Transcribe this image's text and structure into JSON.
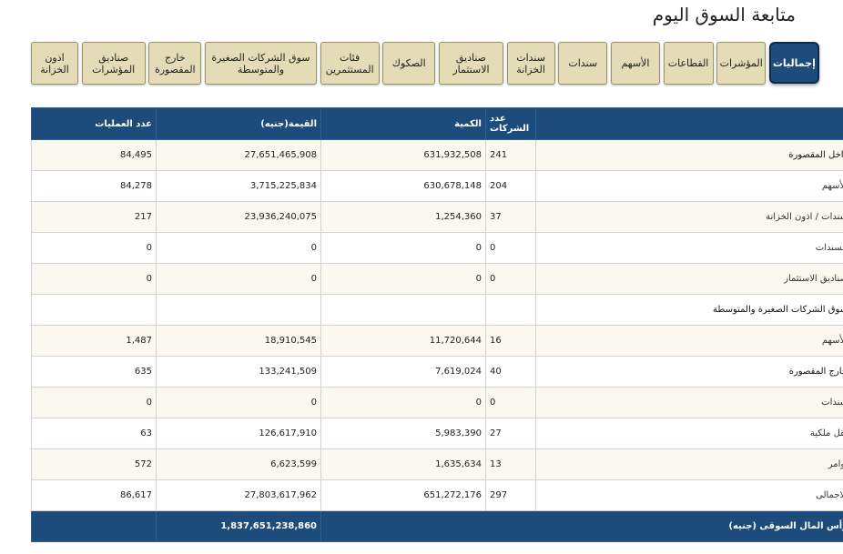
{
  "title": "متابعة السوق اليوم",
  "tabs": [
    {
      "label": "إجماليات",
      "active": true
    },
    {
      "label": "المؤشرات"
    },
    {
      "label": "القطاعات"
    },
    {
      "label": "الأسهم"
    },
    {
      "label": "سندات"
    },
    {
      "label": "سندات الخزانة"
    },
    {
      "label": "صناديق الاستثمار"
    },
    {
      "label": "الصكوك"
    },
    {
      "label": "فئات المستثمرين"
    },
    {
      "label": "سوق الشركات الصغيرة والمتوسطة"
    },
    {
      "label": "خارج المقصورة"
    },
    {
      "label": "صناديق المؤشرات"
    },
    {
      "label": "اذون الخزانة"
    }
  ],
  "table": {
    "headers": {
      "companies": "عدد الشركات",
      "quantity": "الكمية",
      "value": "القيمة(جنيه)",
      "operations": "عدد العمليات"
    },
    "rows": [
      {
        "label": "داخل المقصورة",
        "companies": "241",
        "quantity": "631,932,508",
        "value": "27,651,465,908",
        "operations": "84,495"
      },
      {
        "label": "الأسهم",
        "companies": "204",
        "quantity": "630,678,148",
        "value": "3,715,225,834",
        "operations": "84,278"
      },
      {
        "label": "سندات / اذون الخزانة",
        "companies": "37",
        "quantity": "1,254,360",
        "value": "23,936,240,075",
        "operations": "217"
      },
      {
        "label": "السندات",
        "companies": "0",
        "quantity": "0",
        "value": "0",
        "operations": "0"
      },
      {
        "label": "صناديق الاستثمار",
        "companies": "0",
        "quantity": "0",
        "value": "0",
        "operations": "0"
      },
      {
        "label": "سوق الشركات الصغيرة والمتوسطة",
        "companies": "",
        "quantity": "",
        "value": "",
        "operations": ""
      },
      {
        "label": "الأسهم",
        "companies": "16",
        "quantity": "11,720,644",
        "value": "18,910,545",
        "operations": "1,487"
      },
      {
        "label": "خارج المقصورة",
        "companies": "40",
        "quantity": "7,619,024",
        "value": "133,241,509",
        "operations": "635"
      },
      {
        "label": "سندات",
        "companies": "0",
        "quantity": "0",
        "value": "0",
        "operations": "0"
      },
      {
        "label": "نقل ملكية",
        "companies": "27",
        "quantity": "5,983,390",
        "value": "126,617,910",
        "operations": "63"
      },
      {
        "label": "أوامر",
        "companies": "13",
        "quantity": "1,635,634",
        "value": "6,623,599",
        "operations": "572"
      },
      {
        "label": "الاجمالى",
        "companies": "297",
        "quantity": "651,272,176",
        "value": "27,803,617,962",
        "operations": "86,617"
      }
    ],
    "footer": {
      "label": "رأس المال السوقى (جنيه)",
      "value": "1,837,651,238,860"
    }
  }
}
